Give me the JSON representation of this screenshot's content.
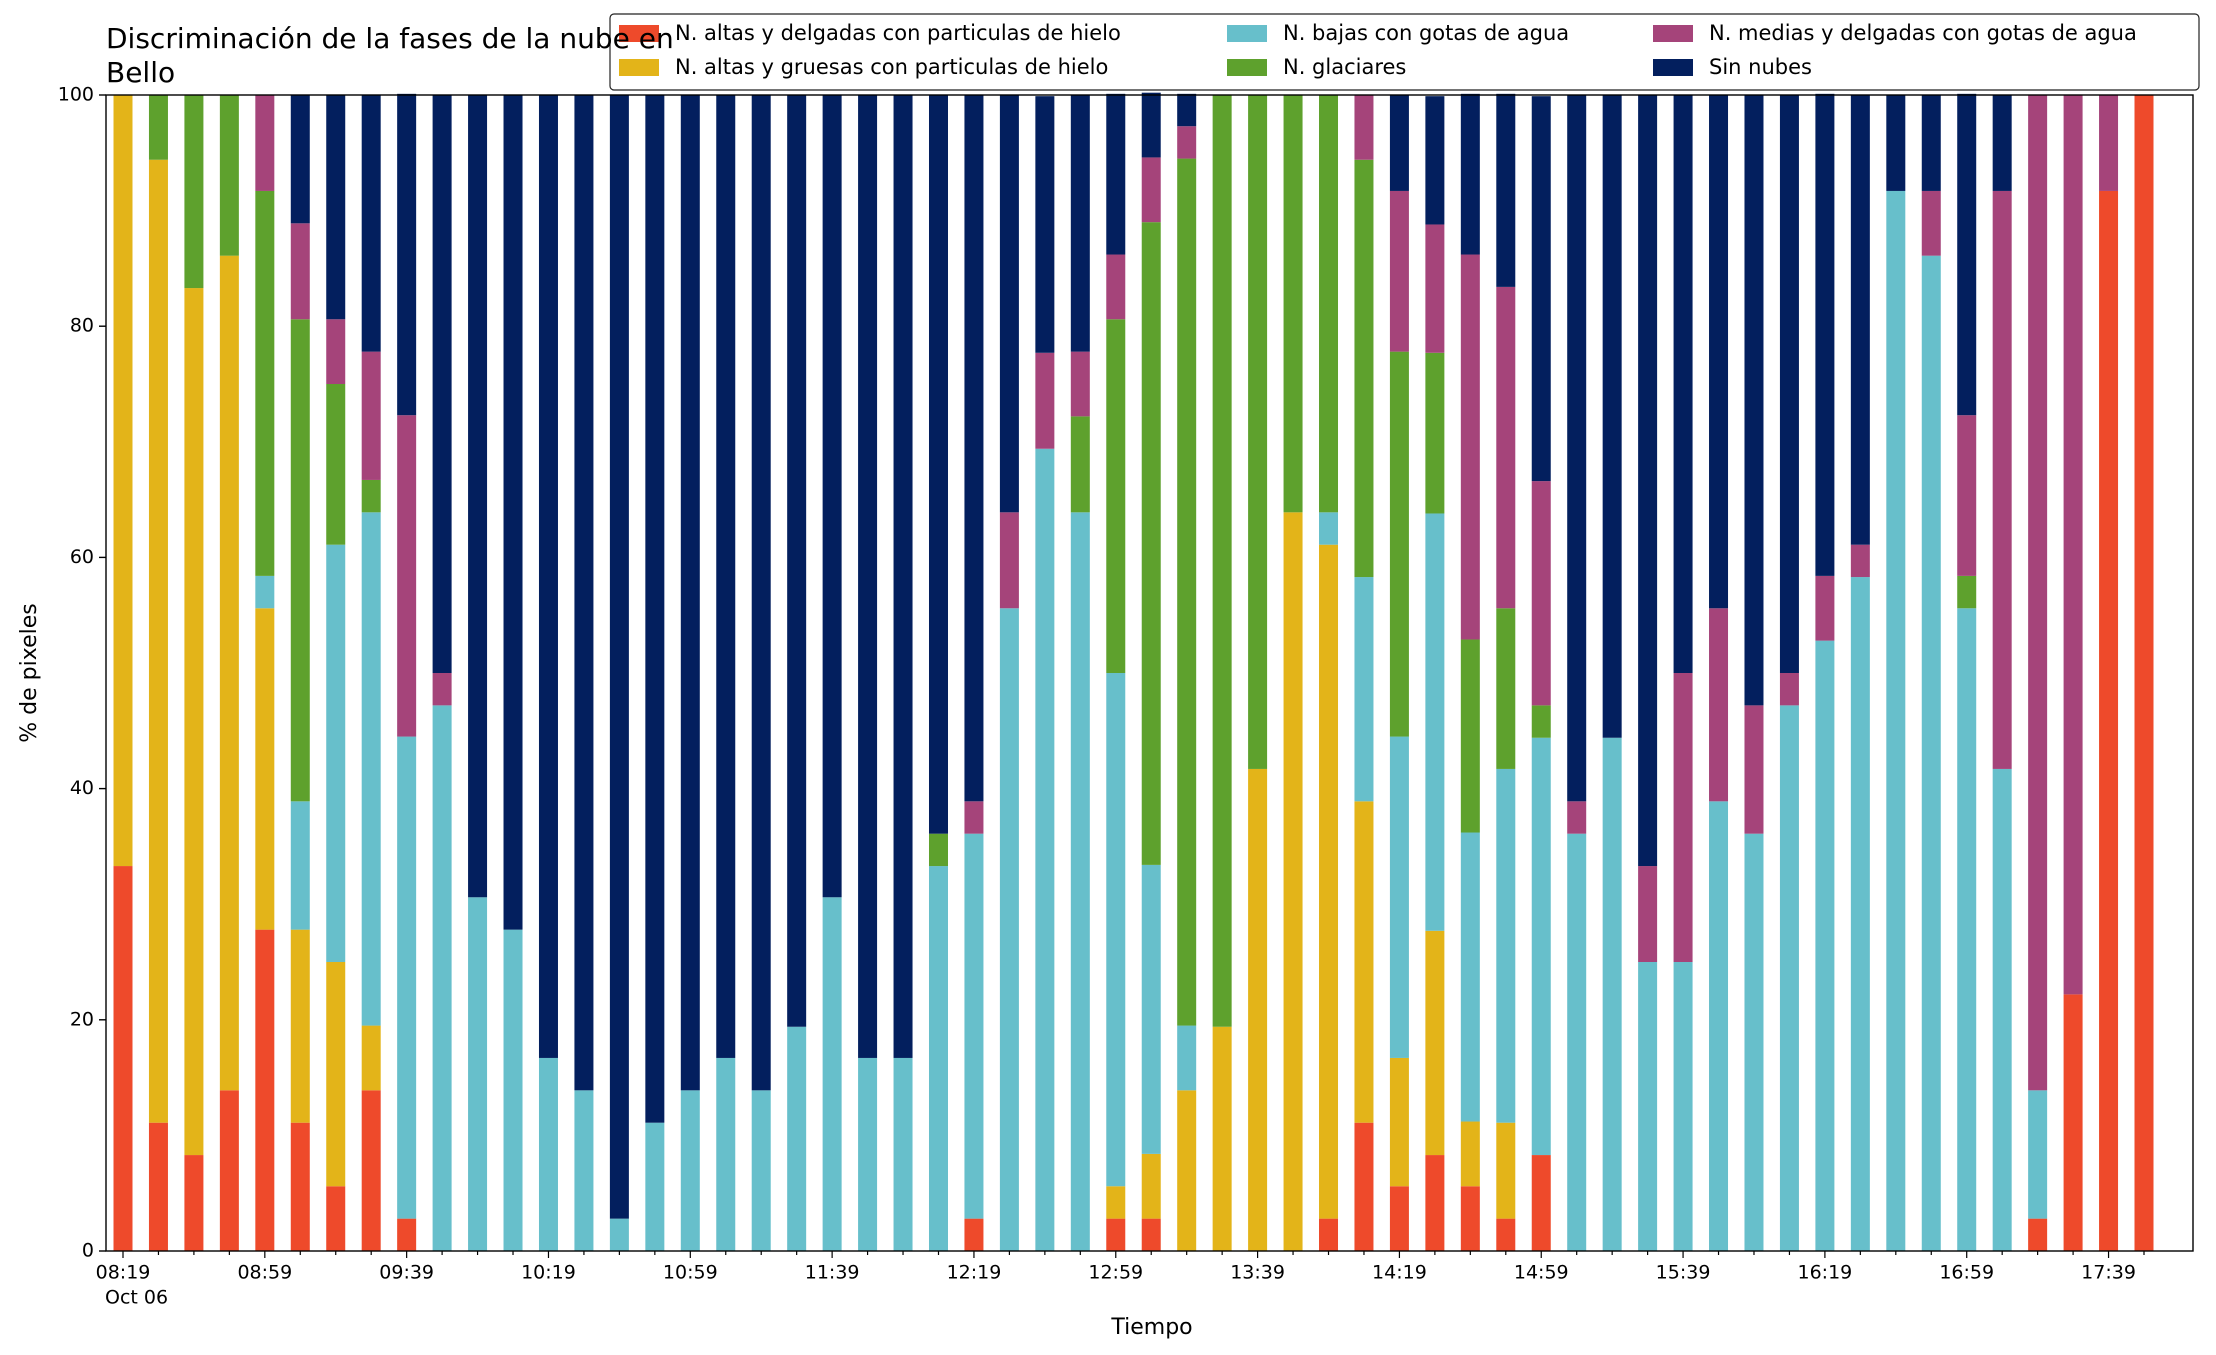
{
  "chart_data": {
    "type": "stacked_bar",
    "title": "Discriminación de la fases de la nube en Bello",
    "x_label": "Tiempo",
    "y_label": "% de pixeles",
    "x_date_label": "Oct 06",
    "categories": [
      "08:19",
      null,
      null,
      null,
      "08:59",
      null,
      null,
      null,
      "09:39",
      null,
      null,
      null,
      "10:19",
      null,
      null,
      null,
      "10:59",
      null,
      null,
      null,
      "11:39",
      null,
      null,
      null,
      "12:19",
      null,
      null,
      null,
      "12:59",
      null,
      null,
      null,
      "13:39",
      null,
      null,
      null,
      "14:19",
      null,
      null,
      null,
      "14:59",
      null,
      null,
      null,
      "15:39",
      null,
      null,
      null,
      "16:19",
      null,
      null,
      null,
      "16:59",
      null,
      null,
      null,
      "17:39",
      null
    ],
    "ylim": [
      0,
      100
    ],
    "yticks": [
      0,
      20,
      40,
      60,
      80,
      100
    ],
    "grid": false,
    "legend": "top-right",
    "series": [
      {
        "name": "N. altas y delgadas con particulas de hielo",
        "color": "#ee4a2b",
        "values": [
          33.3,
          11.1,
          8.3,
          13.9,
          27.8,
          11.1,
          5.6,
          13.9,
          2.8,
          0,
          0,
          0,
          0,
          0,
          0,
          0,
          0,
          0,
          0,
          0,
          0,
          0,
          0,
          0,
          2.8,
          0,
          0,
          0,
          2.8,
          2.8,
          0,
          0,
          0,
          0,
          2.8,
          11.1,
          5.6,
          8.3,
          5.6,
          2.8,
          8.3,
          0,
          0,
          0,
          0,
          0,
          0,
          0,
          0,
          0,
          0,
          0,
          0,
          0,
          2.8,
          22.2,
          91.7,
          100
        ]
      },
      {
        "name": "N. altas y gruesas con particulas de hielo",
        "color": "#e3b419",
        "values": [
          66.7,
          83.3,
          75,
          72.2,
          27.8,
          16.7,
          19.4,
          5.6,
          0,
          0,
          0,
          0,
          0,
          0,
          0,
          0,
          0,
          0,
          0,
          0,
          0,
          0,
          0,
          0,
          0,
          0,
          0,
          0,
          2.8,
          5.6,
          13.9,
          19.4,
          41.7,
          63.9,
          58.3,
          27.8,
          11.1,
          19.4,
          5.6,
          8.3,
          0,
          0,
          0,
          0,
          0,
          0,
          0,
          0,
          0,
          0,
          0,
          0,
          0,
          0,
          0,
          0,
          0,
          0
        ]
      },
      {
        "name": "N. bajas con gotas de agua",
        "color": "#67bfcb",
        "values": [
          0,
          0,
          0,
          0,
          2.8,
          11.1,
          36.1,
          44.4,
          41.7,
          47.2,
          30.6,
          27.8,
          16.7,
          13.9,
          2.8,
          11.1,
          13.9,
          16.7,
          13.9,
          19.4,
          30.6,
          16.7,
          16.7,
          33.3,
          33.3,
          55.6,
          69.4,
          63.9,
          44.4,
          25,
          5.6,
          0,
          0,
          0,
          2.8,
          19.4,
          27.8,
          36.1,
          25,
          30.6,
          36.1,
          36.1,
          44.4,
          25,
          25,
          38.9,
          36.1,
          47.2,
          52.8,
          58.3,
          91.7,
          86.1,
          55.6,
          41.7,
          11.1,
          0,
          0,
          0
        ]
      },
      {
        "name": "N. glaciares",
        "color": "#5ea12d",
        "values": [
          0,
          5.6,
          16.7,
          13.9,
          33.3,
          41.7,
          13.9,
          2.8,
          0,
          0,
          0,
          0,
          0,
          0,
          0,
          0,
          0,
          0,
          0,
          0,
          0,
          0,
          0,
          2.8,
          0,
          0,
          0,
          8.3,
          30.6,
          55.6,
          75,
          80.6,
          58.3,
          36.1,
          36.1,
          36.1,
          33.3,
          13.9,
          16.7,
          13.9,
          2.8,
          0,
          0,
          0,
          0,
          0,
          0,
          0,
          0,
          0,
          0,
          0,
          2.8,
          0,
          0,
          0,
          0,
          0
        ]
      },
      {
        "name": "N. medias y delgadas con gotas de agua",
        "color": "#a5447a",
        "values": [
          0,
          0,
          0,
          0,
          8.3,
          8.3,
          5.6,
          11.1,
          27.8,
          2.8,
          0,
          0,
          0,
          0,
          0,
          0,
          0,
          0,
          0,
          0,
          0,
          0,
          0,
          0,
          2.8,
          8.3,
          8.3,
          5.6,
          5.6,
          5.6,
          2.8,
          0,
          0,
          0,
          0,
          5.6,
          13.9,
          11.1,
          33.3,
          27.8,
          19.4,
          2.8,
          0,
          8.3,
          25,
          16.7,
          11.1,
          2.8,
          5.6,
          2.8,
          0,
          5.6,
          13.9,
          50,
          86.1,
          77.8,
          8.3,
          0
        ]
      },
      {
        "name": "Sin nubes",
        "color": "#031f5e",
        "values": [
          0,
          0,
          0,
          0,
          0,
          11.1,
          19.4,
          22.2,
          27.8,
          50,
          69.4,
          72.2,
          83.3,
          86.1,
          97.2,
          88.9,
          86.1,
          83.3,
          86.1,
          80.6,
          69.4,
          83.3,
          83.3,
          63.9,
          61.1,
          36.1,
          22.2,
          22.2,
          13.9,
          5.6,
          2.8,
          0,
          0,
          0,
          0,
          0,
          8.3,
          11.1,
          13.9,
          16.7,
          33.3,
          61.1,
          55.6,
          66.7,
          50,
          44.4,
          52.8,
          50,
          41.7,
          38.9,
          8.3,
          8.3,
          27.8,
          8.3,
          0,
          0,
          0,
          0
        ]
      }
    ]
  }
}
